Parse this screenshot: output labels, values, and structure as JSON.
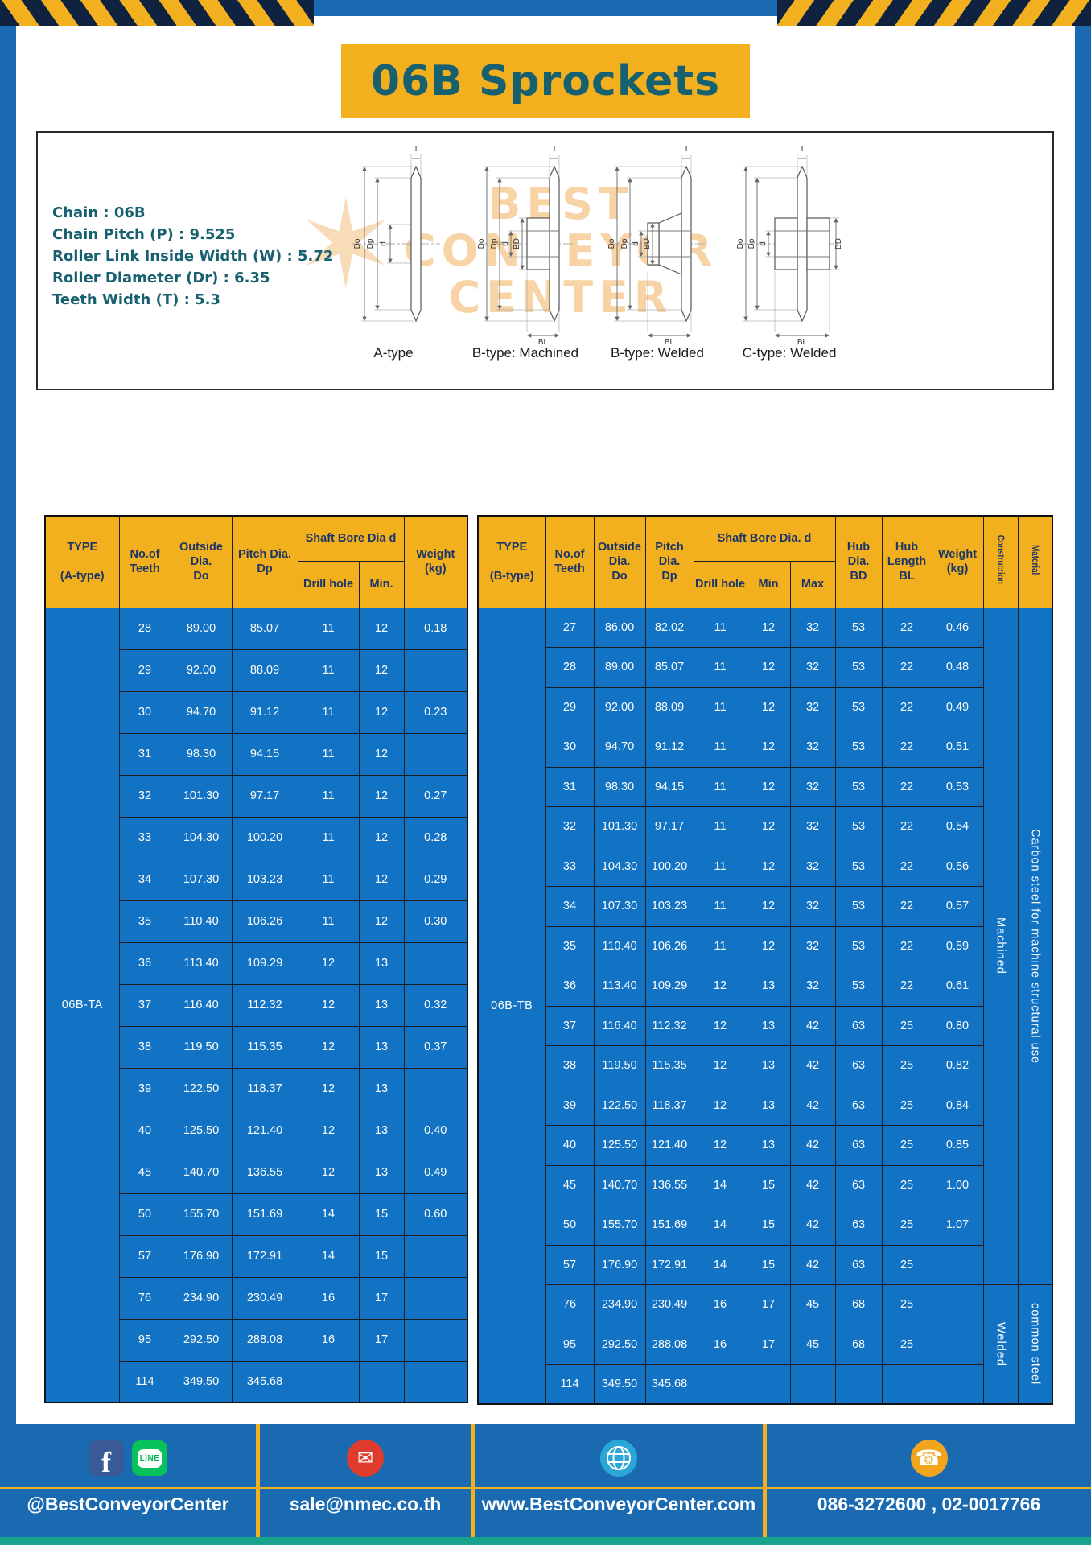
{
  "title": "06B Sprockets",
  "specs": [
    "Chain  :  06B",
    "Chain Pitch (P)  :  9.525",
    "Roller Link Inside Width (W)  :  5.72",
    "Roller Diameter (Dr)  :  6.35",
    "Teeth Width (T)  :  5.3"
  ],
  "watermark": {
    "lines": [
      "BEST",
      "CONVEYOR",
      "CENTER"
    ]
  },
  "dims": {
    "t": "T",
    "do": "Do",
    "dp": "Dp",
    "d": "d",
    "bd": "BD",
    "bl": "BL"
  },
  "drawings": [
    {
      "caption": "A-type"
    },
    {
      "caption": "B-type: Machined"
    },
    {
      "caption": "B-type: Welded"
    },
    {
      "caption": "C-type: Welded"
    }
  ],
  "table_a": {
    "headers": {
      "type": "TYPE\n\n(A-type)",
      "teeth": "No.of\nTeeth",
      "outside": "Outside\nDia.\nDo",
      "pitch": "Pitch Dia.\nDp",
      "bore_group": "Shaft Bore Dia d",
      "drill": "Drill hole",
      "min": "Min.",
      "weight": "Weight\n(kg)"
    },
    "type_value": "06B-TA",
    "rows": [
      [
        "28",
        "89.00",
        "85.07",
        "11",
        "12",
        "0.18"
      ],
      [
        "29",
        "92.00",
        "88.09",
        "11",
        "12",
        ""
      ],
      [
        "30",
        "94.70",
        "91.12",
        "11",
        "12",
        "0.23"
      ],
      [
        "31",
        "98.30",
        "94.15",
        "11",
        "12",
        ""
      ],
      [
        "32",
        "101.30",
        "97.17",
        "11",
        "12",
        "0.27"
      ],
      [
        "33",
        "104.30",
        "100.20",
        "11",
        "12",
        "0.28"
      ],
      [
        "34",
        "107.30",
        "103.23",
        "11",
        "12",
        "0.29"
      ],
      [
        "35",
        "110.40",
        "106.26",
        "11",
        "12",
        "0.30"
      ],
      [
        "36",
        "113.40",
        "109.29",
        "12",
        "13",
        ""
      ],
      [
        "37",
        "116.40",
        "112.32",
        "12",
        "13",
        "0.32"
      ],
      [
        "38",
        "119.50",
        "115.35",
        "12",
        "13",
        "0.37"
      ],
      [
        "39",
        "122.50",
        "118.37",
        "12",
        "13",
        ""
      ],
      [
        "40",
        "125.50",
        "121.40",
        "12",
        "13",
        "0.40"
      ],
      [
        "45",
        "140.70",
        "136.55",
        "12",
        "13",
        "0.49"
      ],
      [
        "50",
        "155.70",
        "151.69",
        "14",
        "15",
        "0.60"
      ],
      [
        "57",
        "176.90",
        "172.91",
        "14",
        "15",
        ""
      ],
      [
        "76",
        "234.90",
        "230.49",
        "16",
        "17",
        ""
      ],
      [
        "95",
        "292.50",
        "288.08",
        "16",
        "17",
        ""
      ],
      [
        "114",
        "349.50",
        "345.68",
        "",
        "",
        ""
      ]
    ]
  },
  "table_b": {
    "headers": {
      "type": "TYPE\n\n(B-type)",
      "teeth": "No.of\nTeeth",
      "outside": "Outside\nDia.\nDo",
      "pitch": "Pitch\nDia.\nDp",
      "bore_group": "Shaft Bore Dia. d",
      "drill": "Drill hole",
      "min": "Min",
      "max": "Max",
      "hub_dia": "Hub\nDia.\nBD",
      "hub_len": "Hub\nLength\nBL",
      "weight": "Weight\n(kg)",
      "construction": "Construction",
      "material": "Material"
    },
    "type_value": "06B-TB",
    "rows": [
      [
        "27",
        "86.00",
        "82.02",
        "11",
        "12",
        "32",
        "53",
        "22",
        "0.46"
      ],
      [
        "28",
        "89.00",
        "85.07",
        "11",
        "12",
        "32",
        "53",
        "22",
        "0.48"
      ],
      [
        "29",
        "92.00",
        "88.09",
        "11",
        "12",
        "32",
        "53",
        "22",
        "0.49"
      ],
      [
        "30",
        "94.70",
        "91.12",
        "11",
        "12",
        "32",
        "53",
        "22",
        "0.51"
      ],
      [
        "31",
        "98.30",
        "94.15",
        "11",
        "12",
        "32",
        "53",
        "22",
        "0.53"
      ],
      [
        "32",
        "101.30",
        "97.17",
        "11",
        "12",
        "32",
        "53",
        "22",
        "0.54"
      ],
      [
        "33",
        "104.30",
        "100.20",
        "11",
        "12",
        "32",
        "53",
        "22",
        "0.56"
      ],
      [
        "34",
        "107.30",
        "103.23",
        "11",
        "12",
        "32",
        "53",
        "22",
        "0.57"
      ],
      [
        "35",
        "110.40",
        "106.26",
        "11",
        "12",
        "32",
        "53",
        "22",
        "0.59"
      ],
      [
        "36",
        "113.40",
        "109.29",
        "12",
        "13",
        "32",
        "53",
        "22",
        "0.61"
      ],
      [
        "37",
        "116.40",
        "112.32",
        "12",
        "13",
        "42",
        "63",
        "25",
        "0.80"
      ],
      [
        "38",
        "119.50",
        "115.35",
        "12",
        "13",
        "42",
        "63",
        "25",
        "0.82"
      ],
      [
        "39",
        "122.50",
        "118.37",
        "12",
        "13",
        "42",
        "63",
        "25",
        "0.84"
      ],
      [
        "40",
        "125.50",
        "121.40",
        "12",
        "13",
        "42",
        "63",
        "25",
        "0.85"
      ],
      [
        "45",
        "140.70",
        "136.55",
        "14",
        "15",
        "42",
        "63",
        "25",
        "1.00"
      ],
      [
        "50",
        "155.70",
        "151.69",
        "14",
        "15",
        "42",
        "63",
        "25",
        "1.07"
      ],
      [
        "57",
        "176.90",
        "172.91",
        "14",
        "15",
        "42",
        "63",
        "25",
        ""
      ],
      [
        "76",
        "234.90",
        "230.49",
        "16",
        "17",
        "45",
        "68",
        "25",
        ""
      ],
      [
        "95",
        "292.50",
        "288.08",
        "16",
        "17",
        "45",
        "68",
        "25",
        ""
      ],
      [
        "114",
        "349.50",
        "345.68",
        "",
        "",
        "",
        "",
        "",
        ""
      ]
    ],
    "span_cols": [
      {
        "cls": "construction",
        "name": "construction-cell",
        "groups": [
          {
            "label": "Machined",
            "span": 17
          },
          {
            "label": "Welded",
            "span": 3
          }
        ]
      },
      {
        "cls": "material",
        "name": "material-cell",
        "groups": [
          {
            "label": "Carbon steel for machine structural use",
            "span": 17
          },
          {
            "label": "common steel",
            "span": 3
          }
        ]
      }
    ]
  },
  "footer": {
    "facebook_glyph": "f",
    "line_label": "LINE",
    "icon_names": [
      "facebook-icon",
      "line-icon",
      "email-icon",
      "globe-icon",
      "phone-icon"
    ],
    "items": [
      "@BestConveyorCenter",
      "sale@nmec.co.th",
      "www.BestConveyorCenter.com",
      "086-3272600 , 02-0017766"
    ]
  }
}
